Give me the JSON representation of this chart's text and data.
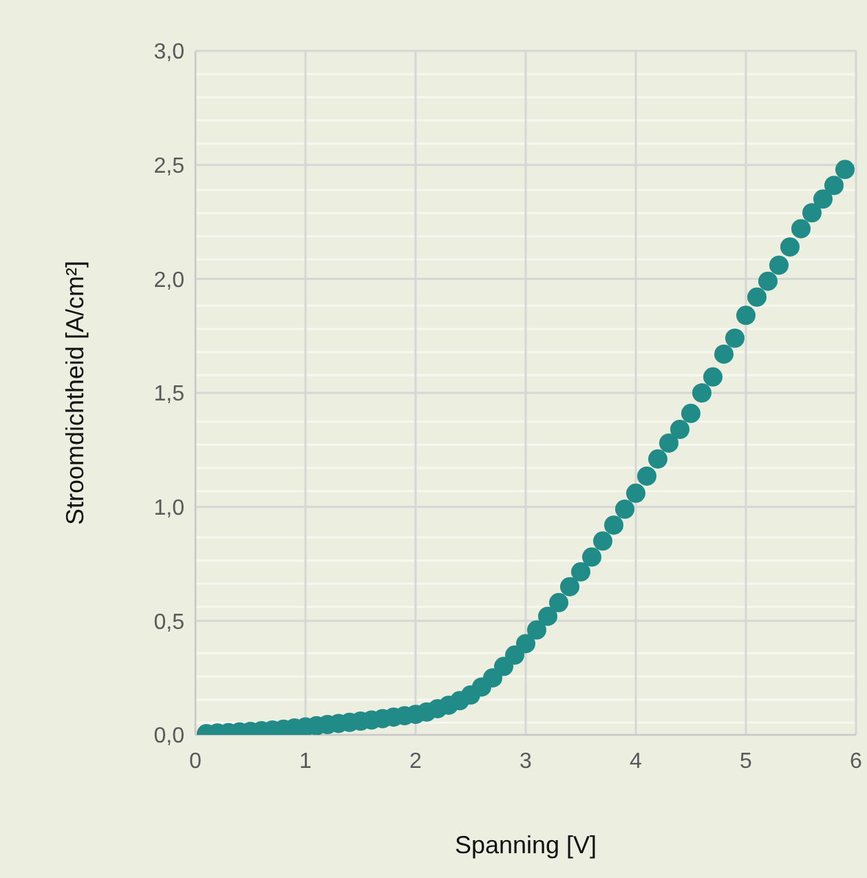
{
  "chart_data": {
    "type": "scatter",
    "xlabel": "Spanning [V]",
    "ylabel": "Stroomdichtheid [A/cm²]",
    "x": [
      0.1,
      0.2,
      0.3,
      0.4,
      0.5,
      0.6,
      0.7,
      0.8,
      0.9,
      1.0,
      1.1,
      1.2,
      1.3,
      1.4,
      1.5,
      1.6,
      1.7,
      1.8,
      1.9,
      2.0,
      2.1,
      2.2,
      2.3,
      2.4,
      2.5,
      2.6,
      2.7,
      2.8,
      2.9,
      3.0,
      3.1,
      3.2,
      3.3,
      3.4,
      3.5,
      3.6,
      3.7,
      3.8,
      3.9,
      4.0,
      4.1,
      4.2,
      4.3,
      4.4,
      4.5,
      4.6,
      4.7,
      4.8,
      4.9,
      5.0,
      5.1,
      5.2,
      5.3,
      5.4,
      5.5,
      5.6,
      5.7,
      5.8,
      5.9
    ],
    "series": [
      {
        "color": "#218b87",
        "values": [
          0.005,
          0.008,
          0.01,
          0.013,
          0.015,
          0.018,
          0.021,
          0.025,
          0.03,
          0.035,
          0.04,
          0.045,
          0.05,
          0.055,
          0.06,
          0.065,
          0.071,
          0.078,
          0.084,
          0.09,
          0.1,
          0.115,
          0.13,
          0.15,
          0.175,
          0.21,
          0.25,
          0.3,
          0.35,
          0.4,
          0.46,
          0.52,
          0.58,
          0.65,
          0.715,
          0.78,
          0.85,
          0.92,
          0.99,
          1.06,
          1.135,
          1.21,
          1.28,
          1.34,
          1.41,
          1.5,
          1.57,
          1.67,
          1.74,
          1.84,
          1.92,
          1.99,
          2.06,
          2.14,
          2.22,
          2.29,
          2.35,
          2.41,
          2.48
        ]
      }
    ],
    "xlim": [
      0,
      6
    ],
    "xticks": [
      0,
      1,
      2,
      3,
      4,
      5,
      6
    ],
    "ylim": [
      0,
      3
    ],
    "yticks": [
      {
        "value": 0,
        "label": "0,0"
      },
      {
        "value": 0.5,
        "label": "0,5"
      },
      {
        "value": 1,
        "label": "1,0"
      },
      {
        "value": 1.5,
        "label": "1,5"
      },
      {
        "value": 2,
        "label": "2,0"
      },
      {
        "value": 2.5,
        "label": "2,5"
      },
      {
        "value": 3,
        "label": "3,0"
      }
    ],
    "grid": true,
    "marker": "circle"
  }
}
